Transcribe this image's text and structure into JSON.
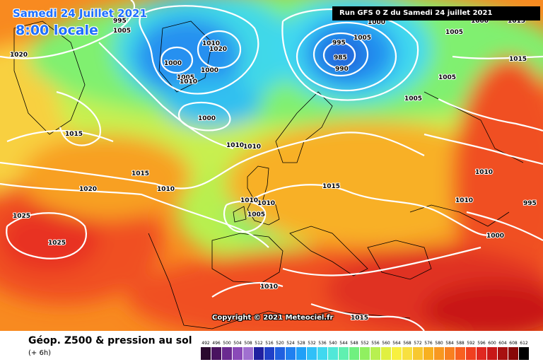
{
  "header": {
    "date": "Samedi 24 Juillet 2021",
    "time": "8:00 locale",
    "run": "Run GFS 0 Z du Samedi 24 juillet 2021"
  },
  "copyright": "Copyright © 2021 Meteociel.fr",
  "footer": {
    "title": "Géop. Z500 & pression au sol",
    "subtitle": "(+ 6h)"
  },
  "legend": {
    "ticks": [
      "492",
      "496",
      "500",
      "504",
      "508",
      "512",
      "516",
      "520",
      "524",
      "528",
      "532",
      "536",
      "540",
      "544",
      "548",
      "552",
      "556",
      "560",
      "564",
      "568",
      "572",
      "576",
      "580",
      "584",
      "588",
      "592",
      "596",
      "600",
      "604",
      "608",
      "612"
    ],
    "colors": [
      "#2a0a2e",
      "#4a1460",
      "#6a2a90",
      "#8a4ab8",
      "#a070d0",
      "#2020a0",
      "#2040c8",
      "#2060e0",
      "#2080f0",
      "#20a0f8",
      "#30c0f8",
      "#40d8f0",
      "#50e8d8",
      "#60f0b0",
      "#70f080",
      "#90f060",
      "#b8f050",
      "#e0f040",
      "#f8f040",
      "#f8e040",
      "#f8c830",
      "#f8b020",
      "#f89820",
      "#f88020",
      "#f86020",
      "#f04020",
      "#e02820",
      "#c81818",
      "#a81010",
      "#880808",
      "#000000"
    ]
  },
  "isobars": {
    "labels": [
      "995",
      "1005",
      "1020",
      "1000",
      "1005",
      "1010",
      "1015",
      "1010",
      "1000",
      "1010",
      "1020",
      "1000",
      "1005",
      "995",
      "985",
      "990",
      "1000",
      "1005",
      "1005",
      "1000",
      "1005",
      "1015",
      "1010",
      "1015",
      "1020",
      "1010",
      "1010",
      "1025",
      "1025",
      "1010",
      "1005",
      "1015",
      "1010",
      "1010",
      "995",
      "1000",
      "1010",
      "1015",
      "1015"
    ]
  }
}
